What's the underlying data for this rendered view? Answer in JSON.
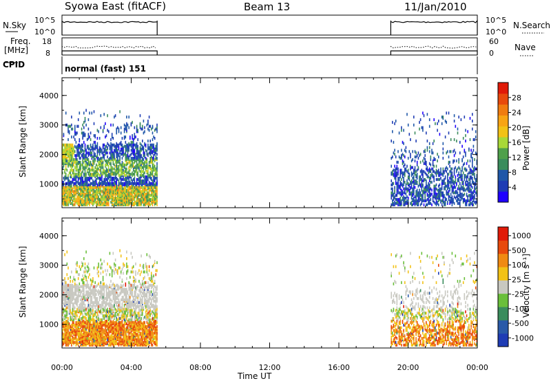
{
  "header": {
    "station": "Syowa East (fitACF)",
    "beam": "Beam 13",
    "date": "11/Jan/2010"
  },
  "strips": {
    "nsky_label": "N.Sky",
    "nsky_ticks": [
      "10^5",
      "10^0"
    ],
    "nsearch_label": "N.Search",
    "nsearch_ticks": [
      "10^5",
      "10^0"
    ],
    "freq_label_1": "Freq.",
    "freq_label_2": "[MHz]",
    "freq_ticks": [
      "18",
      "8"
    ],
    "nave_label": "Nave",
    "nave_ticks": [
      "60",
      "0"
    ],
    "cpid_label": "CPID",
    "cpid_value": "normal (fast) 151"
  },
  "colors": {
    "power": [
      "#1f00ff",
      "#1e3cb4",
      "#1f57a8",
      "#3a8c5c",
      "#4fa04a",
      "#a8d838",
      "#f2c216",
      "#f8a414",
      "#f07c10",
      "#e84a0c",
      "#e01a08"
    ],
    "velocity": [
      "#1f3cb4",
      "#2a5aa8",
      "#3a8c5c",
      "#6abf3a",
      "#c8c8c0",
      "#f2c216",
      "#f08a12",
      "#e84a0c",
      "#e01a08"
    ]
  },
  "chart_data": [
    {
      "type": "heatmap",
      "name": "power",
      "ylabel": "Slant Range [km]",
      "yticks": [
        "1000",
        "2000",
        "3000",
        "4000"
      ],
      "ylim": [
        200,
        4600
      ],
      "colorbar_label": "Power [dB]",
      "colorbar_ticks": [
        "4",
        "8",
        "12",
        "16",
        "20",
        "24",
        "28"
      ],
      "colorbar_range": [
        0,
        32
      ],
      "data_intervals_ut": [
        [
          "00:00",
          "05:30"
        ],
        [
          "19:00",
          "24:00"
        ]
      ]
    },
    {
      "type": "heatmap",
      "name": "velocity",
      "ylabel": "Slant Range [km]",
      "yticks": [
        "1000",
        "2000",
        "3000",
        "4000"
      ],
      "ylim": [
        200,
        4600
      ],
      "colorbar_label": "Velocity [m s⁻¹]",
      "colorbar_ticks": [
        "1000",
        "500",
        "100",
        "25",
        "-25",
        "-100",
        "-500",
        "-1000"
      ],
      "xlabel": "Time UT",
      "xticks": [
        "00:00",
        "04:00",
        "08:00",
        "12:00",
        "16:00",
        "20:00",
        "00:00"
      ],
      "xlim_hours": [
        0,
        24
      ]
    }
  ]
}
